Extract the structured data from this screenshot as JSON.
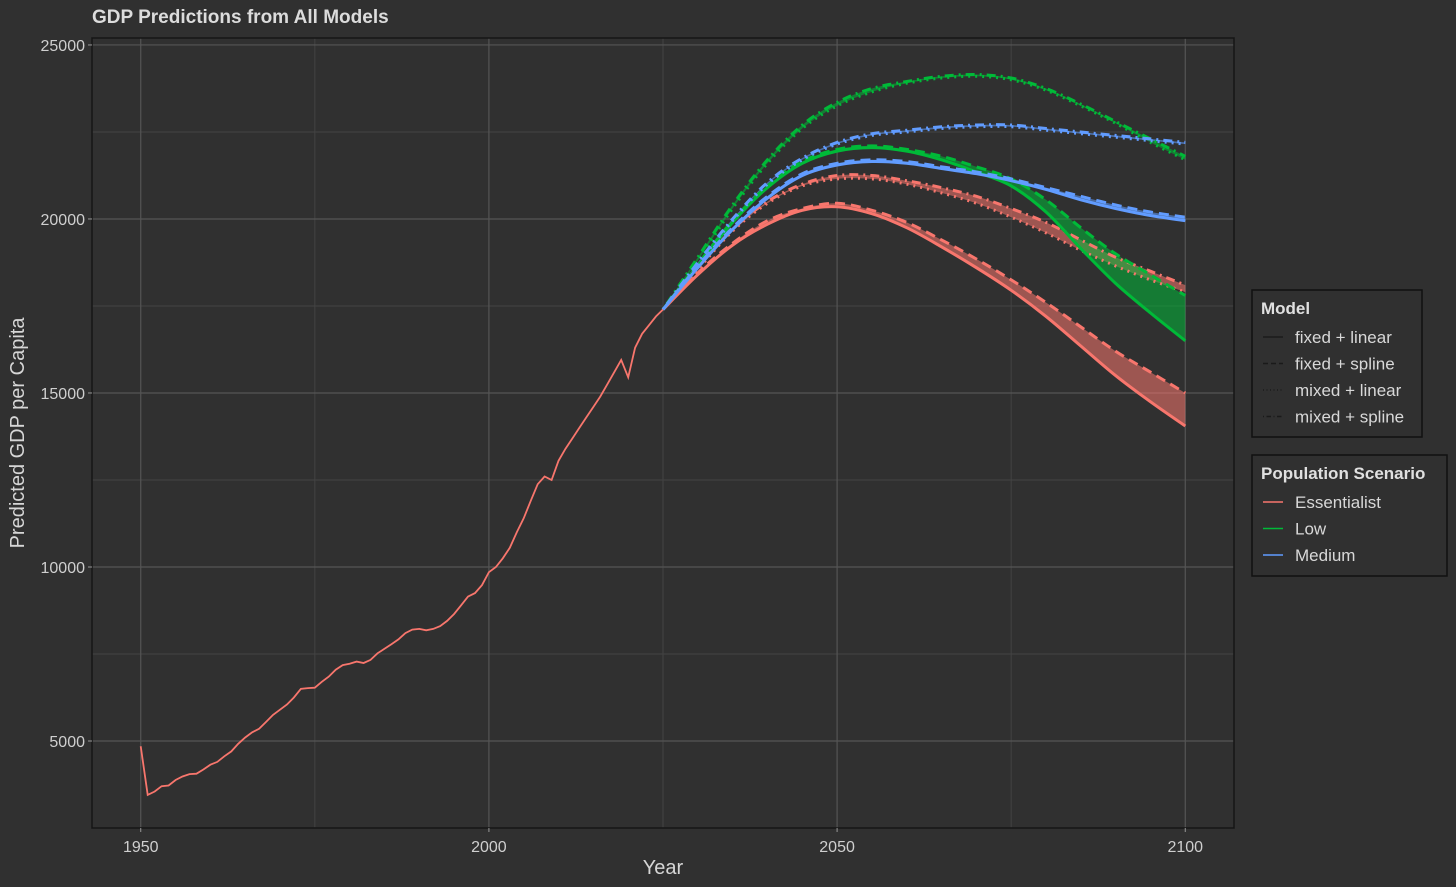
{
  "chart_data": {
    "type": "line",
    "title": "GDP Predictions from All Models",
    "xlabel": "Year",
    "ylabel": "Predicted GDP per Capita",
    "xlim": [
      1943,
      2107
    ],
    "ylim": [
      2500,
      25200
    ],
    "x_ticks": [
      1950,
      2000,
      2050,
      2100
    ],
    "x_tick_labels": [
      "1950",
      "2000",
      "2050",
      "2100"
    ],
    "x_minor_ticks": [
      1975,
      2025,
      2075
    ],
    "y_ticks": [
      5000,
      10000,
      15000,
      20000,
      25000
    ],
    "y_tick_labels": [
      "5000",
      "10000",
      "15000",
      "20000",
      "25000"
    ],
    "y_minor_ticks": [
      7500,
      12500,
      17500,
      22500
    ],
    "grid": true,
    "colors": {
      "background": "#303030",
      "grid_major": "#555555",
      "grid_minor": "#434343",
      "Essentialist": "#F8766D",
      "Low": "#00BA38",
      "Medium": "#619CFF"
    },
    "historical": {
      "scenario": "Essentialist",
      "x": [
        1950,
        1951,
        1952,
        1953,
        1954,
        1955,
        1956,
        1957,
        1958,
        1959,
        1960,
        1961,
        1962,
        1963,
        1964,
        1965,
        1966,
        1967,
        1968,
        1969,
        1970,
        1971,
        1972,
        1973,
        1974,
        1975,
        1976,
        1977,
        1978,
        1979,
        1980,
        1981,
        1982,
        1983,
        1984,
        1985,
        1986,
        1987,
        1988,
        1989,
        1990,
        1991,
        1992,
        1993,
        1994,
        1995,
        1996,
        1997,
        1998,
        1999,
        2000,
        2001,
        2002,
        2003,
        2004,
        2005,
        2006,
        2007,
        2008,
        2009,
        2010,
        2011,
        2012,
        2013,
        2014,
        2015,
        2016,
        2017,
        2018,
        2019,
        2020,
        2021,
        2022,
        2023,
        2024,
        2025
      ],
      "y": [
        4850,
        3450,
        3550,
        3700,
        3720,
        3880,
        3980,
        4050,
        4060,
        4180,
        4320,
        4400,
        4560,
        4700,
        4920,
        5100,
        5250,
        5350,
        5550,
        5750,
        5900,
        6050,
        6250,
        6500,
        6520,
        6530,
        6700,
        6850,
        7050,
        7180,
        7220,
        7280,
        7240,
        7330,
        7520,
        7650,
        7780,
        7920,
        8100,
        8200,
        8220,
        8180,
        8220,
        8300,
        8450,
        8650,
        8900,
        9150,
        9250,
        9480,
        9850,
        10000,
        10250,
        10550,
        11000,
        11400,
        11900,
        12380,
        12600,
        12500,
        13050,
        13400,
        13700,
        14000,
        14300,
        14600,
        14900,
        15250,
        15600,
        15950,
        15450,
        16300,
        16700,
        16950,
        17200,
        17400
      ]
    },
    "projection_x": [
      2025,
      2030,
      2035,
      2040,
      2045,
      2050,
      2055,
      2060,
      2065,
      2070,
      2075,
      2080,
      2085,
      2090,
      2095,
      2100
    ],
    "series": [
      {
        "name": "Essentialist",
        "model": "fixed + linear",
        "values": [
          17400,
          18400,
          19250,
          19850,
          20250,
          20350,
          20150,
          19750,
          19200,
          18600,
          17950,
          17200,
          16350,
          15500,
          14750,
          14050
        ]
      },
      {
        "name": "Essentialist",
        "model": "fixed + spline",
        "values": [
          17400,
          18450,
          19300,
          19950,
          20300,
          20450,
          20250,
          19900,
          19400,
          18850,
          18250,
          17600,
          16900,
          16200,
          15600,
          15000
        ]
      },
      {
        "name": "Essentialist",
        "model": "mixed + linear",
        "values": [
          17400,
          18550,
          19650,
          20450,
          20950,
          21150,
          21150,
          21000,
          20750,
          20450,
          20050,
          19600,
          19100,
          18650,
          18250,
          17900
        ]
      },
      {
        "name": "Essentialist",
        "model": "mixed + spline",
        "values": [
          17400,
          18600,
          19700,
          20500,
          21000,
          21250,
          21250,
          21100,
          20900,
          20650,
          20300,
          19900,
          19400,
          18900,
          18500,
          18100
        ]
      },
      {
        "name": "Low",
        "model": "fixed + linear",
        "values": [
          17400,
          18650,
          19900,
          20900,
          21600,
          21950,
          22050,
          21950,
          21700,
          21350,
          20950,
          20200,
          19150,
          18150,
          17300,
          16500
        ]
      },
      {
        "name": "Low",
        "model": "fixed + spline",
        "values": [
          17400,
          18700,
          19950,
          20950,
          21650,
          22000,
          22100,
          22000,
          21800,
          21500,
          21150,
          20550,
          19750,
          19000,
          18400,
          17800
        ]
      },
      {
        "name": "Low",
        "model": "mixed + linear",
        "values": [
          17400,
          18800,
          20300,
          21600,
          22600,
          23250,
          23650,
          23900,
          24050,
          24100,
          24000,
          23700,
          23250,
          22750,
          22200,
          21700
        ]
      },
      {
        "name": "Low",
        "model": "mixed + spline",
        "values": [
          17400,
          18900,
          20400,
          21700,
          22700,
          23350,
          23750,
          23950,
          24100,
          24150,
          24050,
          23750,
          23300,
          22800,
          22300,
          21800
        ]
      },
      {
        "name": "Medium",
        "model": "fixed + linear",
        "values": [
          17400,
          18600,
          19700,
          20600,
          21250,
          21550,
          21650,
          21600,
          21450,
          21300,
          21100,
          20850,
          20550,
          20300,
          20100,
          19950
        ]
      },
      {
        "name": "Medium",
        "model": "fixed + spline",
        "values": [
          17400,
          18650,
          19750,
          20650,
          21300,
          21600,
          21700,
          21650,
          21500,
          21350,
          21150,
          20900,
          20650,
          20400,
          20200,
          20050
        ]
      },
      {
        "name": "Medium",
        "model": "mixed + linear",
        "values": [
          17400,
          18700,
          19950,
          21000,
          21700,
          22150,
          22400,
          22500,
          22600,
          22650,
          22650,
          22550,
          22450,
          22350,
          22250,
          22150
        ]
      },
      {
        "name": "Medium",
        "model": "mixed + spline",
        "values": [
          17400,
          18750,
          20000,
          21050,
          21750,
          22200,
          22450,
          22550,
          22650,
          22700,
          22700,
          22600,
          22500,
          22400,
          22300,
          22200
        ]
      }
    ],
    "legend": {
      "placement": "right",
      "model": {
        "title": "Model",
        "entries": [
          {
            "label": "fixed + linear",
            "dash": "solid"
          },
          {
            "label": "fixed + spline",
            "dash": "dashed"
          },
          {
            "label": "mixed + linear",
            "dash": "dotted"
          },
          {
            "label": "mixed + spline",
            "dash": "dotdash"
          }
        ]
      },
      "scenario": {
        "title": "Population Scenario",
        "entries": [
          {
            "label": "Essentialist",
            "color": "#F8766D"
          },
          {
            "label": "Low",
            "color": "#00BA38"
          },
          {
            "label": "Medium",
            "color": "#619CFF"
          }
        ]
      }
    }
  }
}
